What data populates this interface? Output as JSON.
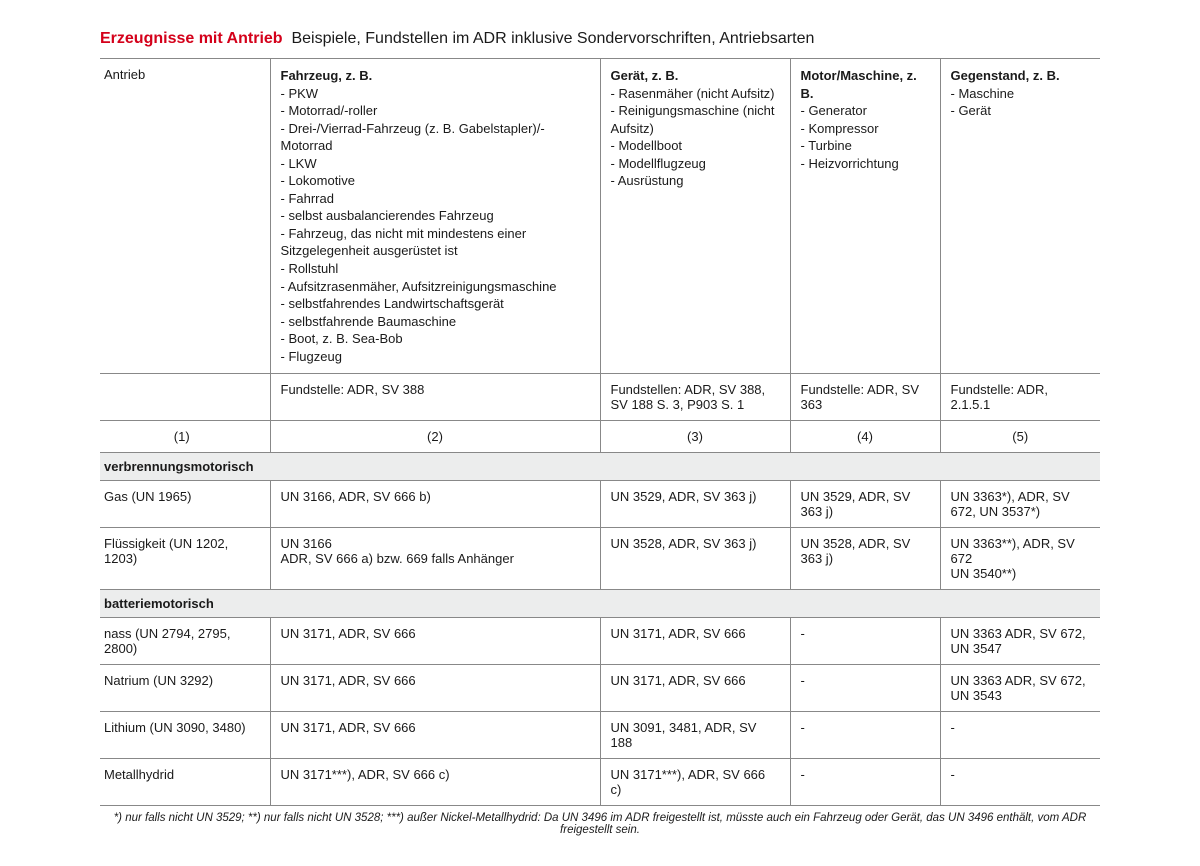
{
  "title": {
    "red": "Erzeugnisse mit Antrieb",
    "rest": "Beispiele, Fundstellen im ADR inklusive Sondervorschriften, Antriebsarten"
  },
  "header": {
    "col1_label": "Antrieb",
    "col2_head": "Fahrzeug, z. B.",
    "col2_items": "- PKW\n- Motorrad/-roller\n- Drei-/Vierrad-Fahrzeug (z. B. Gabelstapler)/-Motorrad\n- LKW\n- Lokomotive\n- Fahrrad\n- selbst ausbalancierendes Fahrzeug\n- Fahrzeug, das nicht mit mindestens einer Sitzgelegenheit ausgerüstet ist\n- Rollstuhl\n- Aufsitzrasenmäher, Aufsitzreinigungsmaschine\n- selbstfahrendes Landwirtschaftsgerät\n- selbstfahrende Baumaschine\n- Boot, z. B. Sea-Bob\n- Flugzeug",
    "col3_head": "Gerät, z. B.",
    "col3_items": "- Rasenmäher (nicht Aufsitz)\n- Reinigungsmaschine (nicht Aufsitz)\n- Modellboot\n- Modellflugzeug\n- Ausrüstung",
    "col4_head": "Motor/Maschine, z. B.",
    "col4_items": "- Generator\n- Kompressor\n- Turbine\n- Heizvorrichtung",
    "col5_head": "Gegenstand, z. B.",
    "col5_items": "- Maschine\n- Gerät"
  },
  "fundstellen": {
    "c2": "Fundstelle: ADR, SV 388",
    "c3": "Fundstellen: ADR, SV 388, SV 188 S. 3, P903 S. 1",
    "c4": "Fundstelle: ADR, SV 363",
    "c5": "Fundstelle: ADR, 2.1.5.1"
  },
  "colnums": {
    "c1": "(1)",
    "c2": "(2)",
    "c3": "(3)",
    "c4": "(4)",
    "c5": "(5)"
  },
  "section1": "verbrennungsmotorisch",
  "row_gas": {
    "c1": "Gas (UN 1965)",
    "c2": "UN 3166, ADR, SV 666 b)",
    "c3": "UN 3529, ADR, SV 363 j)",
    "c4": "UN 3529, ADR, SV 363 j)",
    "c5": "UN 3363*), ADR, SV 672, UN 3537*)"
  },
  "row_fl": {
    "c1": "Flüssigkeit (UN 1202, 1203)",
    "c2": "UN 3166\nADR, SV 666 a) bzw. 669 falls Anhänger",
    "c3": "UN 3528, ADR, SV 363 j)",
    "c4": "UN 3528, ADR, SV 363 j)",
    "c5": "UN 3363**), ADR, SV 672\nUN 3540**)"
  },
  "section2": "batteriemotorisch",
  "row_nass": {
    "c1": "nass (UN 2794, 2795, 2800)",
    "c2": "UN 3171, ADR, SV 666",
    "c3": "UN 3171, ADR, SV 666",
    "c4": "-",
    "c5": "UN 3363 ADR, SV 672, UN 3547"
  },
  "row_nat": {
    "c1": "Natrium (UN 3292)",
    "c2": "UN 3171, ADR, SV 666",
    "c3": "UN 3171, ADR, SV 666",
    "c4": "-",
    "c5": "UN 3363 ADR, SV 672, UN 3543"
  },
  "row_li": {
    "c1": "Lithium (UN 3090, 3480)",
    "c2": "UN 3171, ADR, SV 666",
    "c3": "UN 3091, 3481, ADR, SV 188",
    "c4": "-",
    "c5": "-"
  },
  "row_mh": {
    "c1": "Metallhydrid",
    "c2": "UN 3171***), ADR, SV 666 c)",
    "c3": "UN 3171***), ADR, SV 666 c)",
    "c4": "-",
    "c5": "-"
  },
  "footnote": "*) nur falls nicht UN 3529;  **) nur falls nicht UN 3528;  ***) außer Nickel-Metallhydrid: Da UN 3496 im ADR freigestellt ist, müsste auch ein Fahrzeug oder Gerät, das UN 3496 enthält, vom ADR freigestellt sein."
}
